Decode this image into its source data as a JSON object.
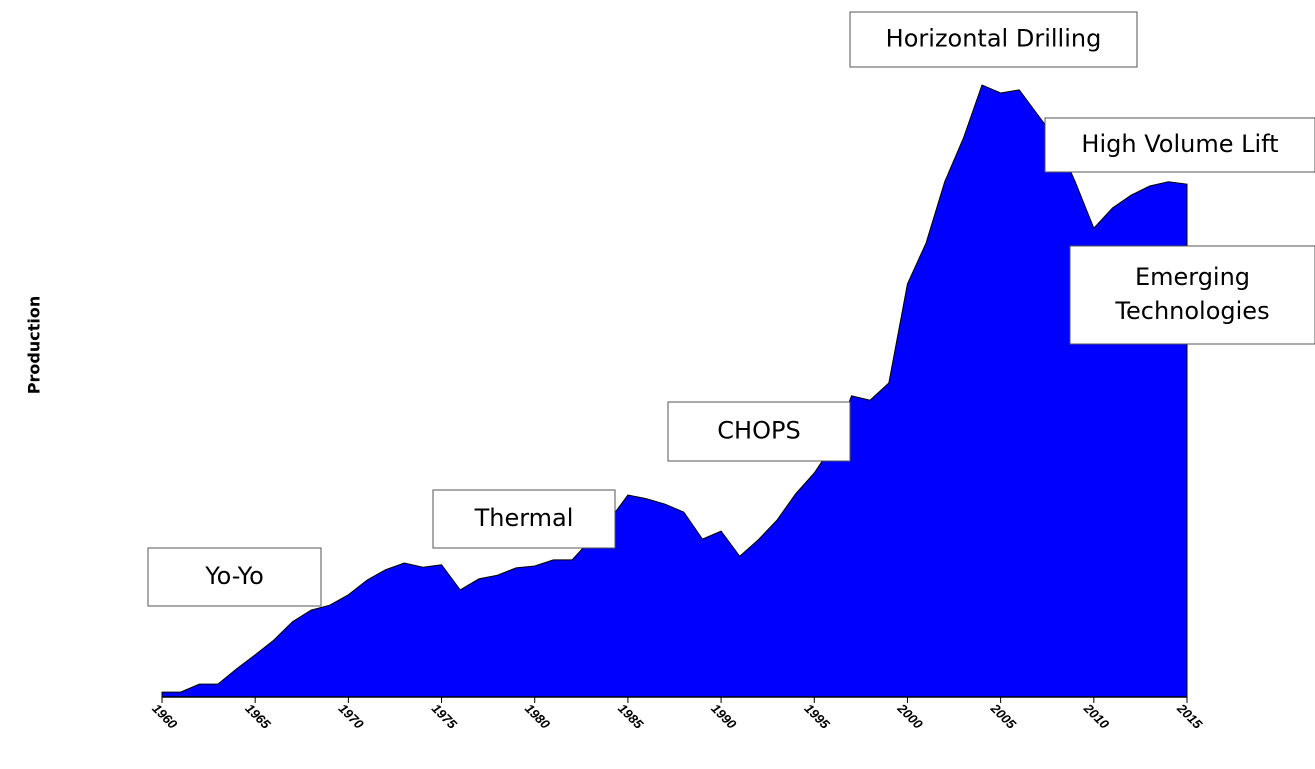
{
  "chart_data": {
    "type": "area",
    "y_label": "Production",
    "color": "#0000ff",
    "x": [
      1960,
      1961,
      1962,
      1963,
      1964,
      1965,
      1966,
      1967,
      1968,
      1969,
      1970,
      1971,
      1972,
      1973,
      1974,
      1975,
      1976,
      1977,
      1978,
      1979,
      1980,
      1981,
      1982,
      1983,
      1984,
      1985,
      1986,
      1987,
      1988,
      1989,
      1990,
      1991,
      1992,
      1993,
      1994,
      1995,
      1996,
      1997,
      1998,
      1999,
      2000,
      2001,
      2002,
      2003,
      2004,
      2005,
      2006,
      2007,
      2008,
      2009,
      2010,
      2011,
      2012,
      2013,
      2014,
      2015
    ],
    "values": [
      0.8,
      0.8,
      2.1,
      2.1,
      4.6,
      6.9,
      9.3,
      12.3,
      14.2,
      15.0,
      16.7,
      19.1,
      20.8,
      21.9,
      21.2,
      21.6,
      17.5,
      19.3,
      19.9,
      21.1,
      21.4,
      22.4,
      22.4,
      25.7,
      28.9,
      33.0,
      32.4,
      31.5,
      30.2,
      25.8,
      27.1,
      23.0,
      25.7,
      28.9,
      33.2,
      36.6,
      41.2,
      49.2,
      48.5,
      51.3,
      67.5,
      74.2,
      84.2,
      91.3,
      100,
      98.7,
      99.2,
      95.1,
      91.0,
      84.2,
      76.6,
      79.9,
      82.0,
      83.5,
      84.2,
      83.8
    ],
    "xlim": [
      1960,
      2015
    ],
    "xticks": [
      1960,
      1965,
      1970,
      1975,
      1980,
      1985,
      1990,
      1995,
      2000,
      2005,
      2010,
      2015
    ],
    "ylim": [
      0,
      100
    ],
    "annotations": [
      {
        "lines": [
          "Yo-Yo"
        ]
      },
      {
        "lines": [
          "Thermal"
        ]
      },
      {
        "lines": [
          "CHOPS"
        ]
      },
      {
        "lines": [
          "Horizontal Drilling"
        ]
      },
      {
        "lines": [
          "High Volume Lift"
        ]
      },
      {
        "lines": [
          "Emerging",
          "Technologies"
        ]
      }
    ]
  }
}
